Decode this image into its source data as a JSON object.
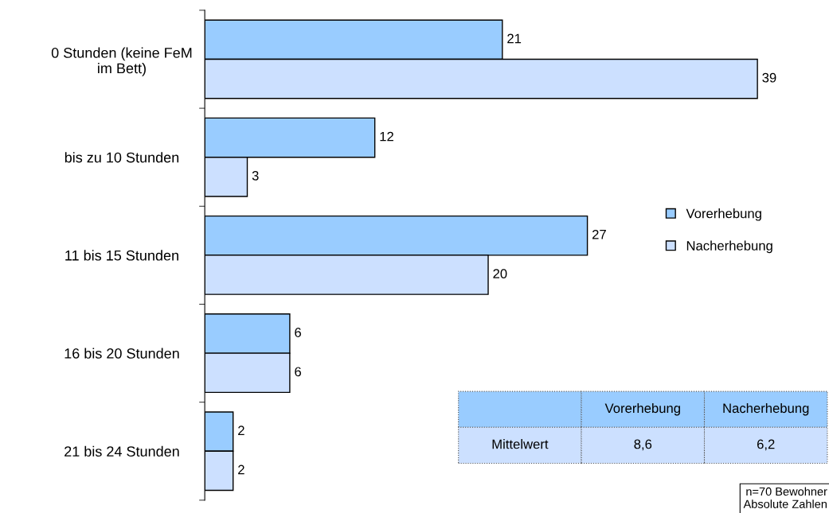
{
  "chart_data": {
    "type": "bar",
    "orientation": "horizontal",
    "categories": [
      "0 Stunden (keine FeM\nim Bett)",
      "bis zu 10 Stunden",
      "11 bis 15 Stunden",
      "16 bis 20 Stunden",
      "21 bis 24 Stunden"
    ],
    "series": [
      {
        "name": "Vorerhebung",
        "color": "#99ccff",
        "values": [
          21,
          12,
          27,
          6,
          2
        ]
      },
      {
        "name": "Nacherhebung",
        "color": "#cce0ff",
        "values": [
          39,
          3,
          20,
          6,
          2
        ]
      }
    ],
    "data_labels": true,
    "legend": "right",
    "grid": false,
    "annotations": [
      "Mittelwert",
      "8,6",
      "6,2",
      "n=70 Bewohner\nAbsolute Zahlen"
    ]
  }
}
